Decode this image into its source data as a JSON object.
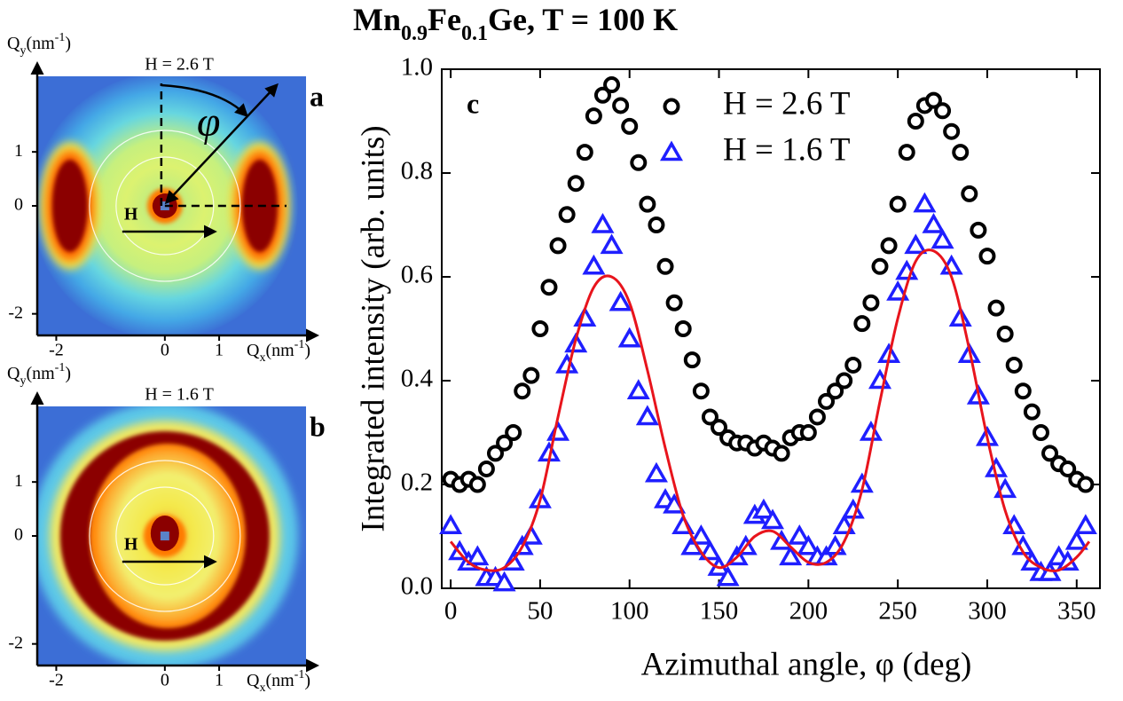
{
  "chart_data": [
    {
      "type": "image",
      "panel_label": "a",
      "title": "H = 2.6 T",
      "xlabel": [
        "Q",
        "x",
        "(nm",
        "-1",
        ")"
      ],
      "ylabel": [
        "Q",
        "y",
        "(nm",
        "-1",
        ")"
      ],
      "xlim": [
        -2.35,
        2.6
      ],
      "ylim": [
        -2.4,
        2.4
      ],
      "xticks": [
        -2,
        0,
        1
      ],
      "yticks": [
        1,
        0,
        -2
      ],
      "annotations": [
        "H",
        "φ"
      ]
    },
    {
      "type": "image",
      "panel_label": "b",
      "title": "H = 1.6 T",
      "xlabel": [
        "Q",
        "x",
        "(nm",
        "-1",
        ")"
      ],
      "ylabel": [
        "Q",
        "y",
        "(nm",
        "-1",
        ")"
      ],
      "xlim": [
        -2.35,
        2.6
      ],
      "ylim": [
        -2.4,
        2.4
      ],
      "xticks": [
        -2,
        0,
        1
      ],
      "yticks": [
        1,
        0,
        -2
      ],
      "annotations": [
        "H"
      ]
    },
    {
      "type": "scatter",
      "title": [
        "Mn",
        "0.9",
        "Fe",
        "0.1",
        "Ge, T = 100 K"
      ],
      "panel_label": "c",
      "xlabel": "Azimuthal angle, φ (deg)",
      "ylabel": "Integrated intensity (arb. units)",
      "xlim": [
        -5,
        363
      ],
      "ylim": [
        0,
        1
      ],
      "xticks": [
        0,
        50,
        100,
        150,
        200,
        250,
        300,
        350
      ],
      "yticks": [
        {
          "value": 0,
          "label": "0.0"
        },
        0.2,
        0.4,
        0.6,
        0.8,
        {
          "value": 1,
          "label": "1.0"
        }
      ],
      "legend": "top",
      "x": [
        0,
        5,
        10,
        15,
        20,
        25,
        30,
        35,
        40,
        45,
        50,
        55,
        60,
        65,
        70,
        75,
        80,
        85,
        90,
        95,
        100,
        105,
        110,
        115,
        120,
        125,
        130,
        135,
        140,
        145,
        150,
        155,
        160,
        165,
        170,
        175,
        180,
        185,
        190,
        195,
        200,
        205,
        210,
        215,
        220,
        225,
        230,
        235,
        240,
        245,
        250,
        255,
        260,
        265,
        270,
        275,
        280,
        285,
        290,
        295,
        300,
        305,
        310,
        315,
        320,
        325,
        330,
        335,
        340,
        345,
        350,
        355
      ],
      "series": [
        {
          "name": "H = 2.6 T",
          "color": "#000000",
          "marker": "circle",
          "values": [
            0.21,
            0.2,
            0.21,
            0.2,
            0.23,
            0.26,
            0.28,
            0.3,
            0.38,
            0.41,
            0.5,
            0.58,
            0.66,
            0.72,
            0.78,
            0.84,
            0.91,
            0.95,
            0.97,
            0.93,
            0.89,
            0.82,
            0.74,
            0.7,
            0.62,
            0.55,
            0.5,
            0.44,
            0.38,
            0.33,
            0.31,
            0.29,
            0.28,
            0.28,
            0.27,
            0.28,
            0.27,
            0.26,
            0.29,
            0.3,
            0.3,
            0.33,
            0.36,
            0.38,
            0.4,
            0.43,
            0.51,
            0.55,
            0.62,
            0.66,
            0.74,
            0.84,
            0.9,
            0.93,
            0.94,
            0.92,
            0.88,
            0.84,
            0.76,
            0.69,
            0.64,
            0.54,
            0.49,
            0.43,
            0.38,
            0.34,
            0.3,
            0.26,
            0.24,
            0.23,
            0.21,
            0.2
          ]
        },
        {
          "name": "H = 1.6 T",
          "color": "#1f1fff",
          "marker": "triangle",
          "values": [
            0.12,
            0.07,
            0.05,
            0.06,
            0.02,
            0.02,
            0.01,
            0.05,
            0.08,
            0.1,
            0.17,
            0.26,
            0.3,
            0.43,
            0.47,
            0.52,
            0.62,
            0.7,
            0.66,
            0.55,
            0.48,
            0.38,
            0.33,
            0.22,
            0.17,
            0.16,
            0.12,
            0.08,
            0.1,
            0.07,
            0.04,
            0.02,
            0.06,
            0.08,
            0.14,
            0.15,
            0.13,
            0.09,
            0.06,
            0.1,
            0.08,
            0.06,
            0.06,
            0.08,
            0.12,
            0.15,
            0.2,
            0.3,
            0.4,
            0.45,
            0.57,
            0.61,
            0.66,
            0.74,
            0.7,
            0.67,
            0.62,
            0.52,
            0.45,
            0.37,
            0.29,
            0.23,
            0.19,
            0.12,
            0.08,
            0.05,
            0.03,
            0.03,
            0.06,
            0.05,
            0.09,
            0.12
          ]
        }
      ],
      "fit": {
        "color": "#e8141c",
        "x": [
          0,
          10,
          20,
          30,
          40,
          50,
          60,
          70,
          80,
          90,
          100,
          110,
          120,
          130,
          140,
          150,
          160,
          170,
          180,
          190,
          200,
          210,
          220,
          230,
          240,
          250,
          260,
          270,
          280,
          290,
          300,
          310,
          320,
          330,
          340,
          350,
          357
        ],
        "values": [
          0.09,
          0.05,
          0.035,
          0.04,
          0.08,
          0.17,
          0.33,
          0.48,
          0.58,
          0.6,
          0.55,
          0.42,
          0.27,
          0.14,
          0.07,
          0.04,
          0.06,
          0.1,
          0.11,
          0.08,
          0.05,
          0.05,
          0.09,
          0.19,
          0.36,
          0.52,
          0.63,
          0.65,
          0.6,
          0.46,
          0.29,
          0.15,
          0.07,
          0.04,
          0.035,
          0.06,
          0.09
        ]
      }
    }
  ]
}
